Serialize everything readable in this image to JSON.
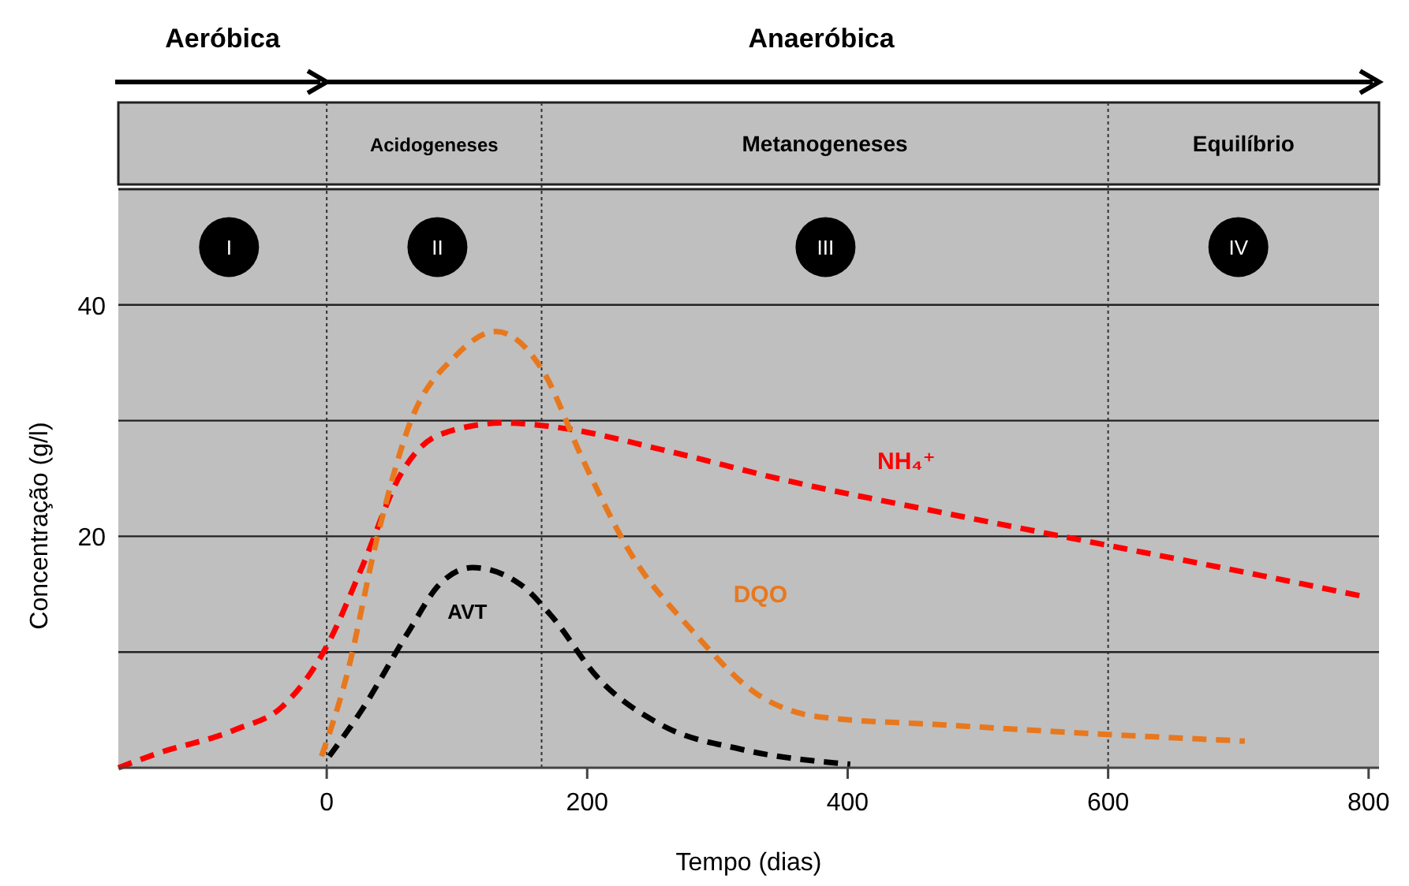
{
  "chart_data": {
    "type": "line",
    "xlabel": "Tempo (dias)",
    "ylabel": "Concentração  (g/l)",
    "xlim": [
      -160,
      808
    ],
    "ylim": [
      0,
      50
    ],
    "xticks": [
      0,
      200,
      400,
      600,
      800
    ],
    "yticks": [
      {
        "value": 10,
        "label": null
      },
      20,
      {
        "value": 30,
        "label": null
      },
      40
    ],
    "grid": "y",
    "line_style": "dashed",
    "series": [
      {
        "name": "NH₄⁺",
        "color": "#ff0000",
        "x": [
          -160,
          -131,
          -70,
          -34,
          0,
          27,
          57,
          87,
          136,
          184,
          257,
          354,
          475,
          596,
          718,
          796
        ],
        "values": [
          0,
          1.2,
          3.3,
          5.3,
          10.5,
          17.3,
          25.4,
          28.8,
          29.8,
          29.3,
          27.5,
          24.8,
          22,
          19.3,
          16.6,
          14.8
        ]
      },
      {
        "name": "DQO",
        "color": "#e8781e",
        "x": [
          -4,
          15,
          39,
          63,
          99,
          130,
          166,
          196,
          233,
          281,
          330,
          378,
          475,
          596,
          705
        ],
        "values": [
          1,
          7.8,
          20,
          29.5,
          35.6,
          37.7,
          34.3,
          26.8,
          18.6,
          11.8,
          6.4,
          4.4,
          3.7,
          2.9,
          2.3
        ]
      },
      {
        "name": "AVT",
        "color": "#000000",
        "x": [
          2,
          27,
          63,
          87,
          112,
          148,
          172,
          208,
          257,
          318,
          402
        ],
        "values": [
          1,
          5,
          11.8,
          15.9,
          17.3,
          15.9,
          13.2,
          7.8,
          3.7,
          1.6,
          0.3
        ]
      }
    ],
    "ref_lines": [
      {
        "axis": "x",
        "value": 0,
        "line_style": "dotted",
        "color": "#333333"
      },
      {
        "axis": "x",
        "value": 165,
        "line_style": "dotted",
        "color": "#333333"
      },
      {
        "axis": "x",
        "value": 600,
        "line_style": "dotted",
        "color": "#333333"
      }
    ],
    "annotations": [
      "Aeróbica",
      "Anaeróbica",
      "Acidogeneses",
      "Metanogeneses",
      "Equilíbrio",
      {
        "text": "I",
        "x": -75,
        "y": 45
      },
      {
        "text": "II",
        "x": 85,
        "y": 45
      },
      {
        "text": "III",
        "x": 383,
        "y": 45
      },
      {
        "text": "IV",
        "x": 700,
        "y": 45
      }
    ]
  }
}
